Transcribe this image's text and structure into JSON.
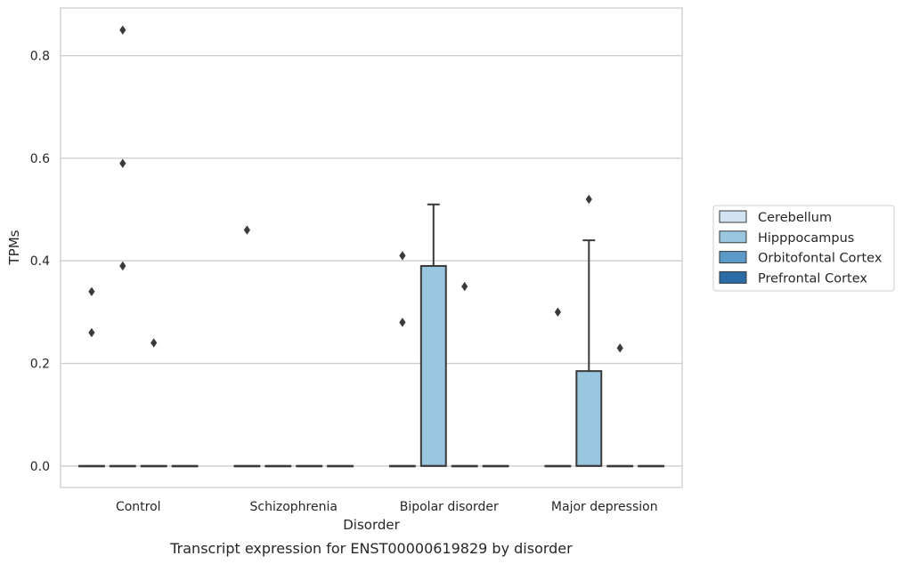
{
  "chart_data": {
    "type": "box",
    "title": "",
    "caption": "Transcript expression for ENST00000619829 by disorder",
    "xlabel": "Disorder",
    "ylabel": "TPMs",
    "ylim": [
      -0.042,
      0.893
    ],
    "yticks": [
      0.0,
      0.2,
      0.4,
      0.6,
      0.8
    ],
    "ytick_labels": [
      "0.0",
      "0.2",
      "0.4",
      "0.6",
      "0.8"
    ],
    "grid": "horizontal",
    "legend_position": "right",
    "categories": [
      "Control",
      "Schizophrenia",
      "Bipolar disorder",
      "Major depression"
    ],
    "series": [
      {
        "name": "Cerebellum",
        "color": "#d1e2f2"
      },
      {
        "name": "Hipppocampus",
        "color": "#9ac7e0"
      },
      {
        "name": "Orbitofontal Cortex",
        "color": "#5b9ac8"
      },
      {
        "name": "Prefrontal Cortex",
        "color": "#2b6ba6"
      }
    ],
    "boxes": [
      {
        "category": "Control",
        "series": "Cerebellum",
        "q1": 0,
        "median": 0,
        "q3": 0,
        "whisker_low": 0,
        "whisker_high": 0,
        "outliers": [
          0.26,
          0.34
        ]
      },
      {
        "category": "Control",
        "series": "Hipppocampus",
        "q1": 0,
        "median": 0,
        "q3": 0,
        "whisker_low": 0,
        "whisker_high": 0,
        "outliers": [
          0.39,
          0.59,
          0.85
        ]
      },
      {
        "category": "Control",
        "series": "Orbitofontal Cortex",
        "q1": 0,
        "median": 0,
        "q3": 0,
        "whisker_low": 0,
        "whisker_high": 0,
        "outliers": [
          0.24
        ]
      },
      {
        "category": "Control",
        "series": "Prefrontal Cortex",
        "q1": 0,
        "median": 0,
        "q3": 0,
        "whisker_low": 0,
        "whisker_high": 0,
        "outliers": []
      },
      {
        "category": "Schizophrenia",
        "series": "Cerebellum",
        "q1": 0,
        "median": 0,
        "q3": 0,
        "whisker_low": 0,
        "whisker_high": 0,
        "outliers": [
          0.46
        ]
      },
      {
        "category": "Schizophrenia",
        "series": "Hipppocampus",
        "q1": 0,
        "median": 0,
        "q3": 0,
        "whisker_low": 0,
        "whisker_high": 0,
        "outliers": []
      },
      {
        "category": "Schizophrenia",
        "series": "Orbitofontal Cortex",
        "q1": 0,
        "median": 0,
        "q3": 0,
        "whisker_low": 0,
        "whisker_high": 0,
        "outliers": []
      },
      {
        "category": "Schizophrenia",
        "series": "Prefrontal Cortex",
        "q1": 0,
        "median": 0,
        "q3": 0,
        "whisker_low": 0,
        "whisker_high": 0,
        "outliers": []
      },
      {
        "category": "Bipolar disorder",
        "series": "Cerebellum",
        "q1": 0,
        "median": 0,
        "q3": 0,
        "whisker_low": 0,
        "whisker_high": 0,
        "outliers": [
          0.28,
          0.41
        ]
      },
      {
        "category": "Bipolar disorder",
        "series": "Hipppocampus",
        "q1": 0,
        "median": 0,
        "q3": 0.39,
        "whisker_low": 0,
        "whisker_high": 0.51,
        "outliers": []
      },
      {
        "category": "Bipolar disorder",
        "series": "Orbitofontal Cortex",
        "q1": 0,
        "median": 0,
        "q3": 0,
        "whisker_low": 0,
        "whisker_high": 0,
        "outliers": [
          0.35
        ]
      },
      {
        "category": "Bipolar disorder",
        "series": "Prefrontal Cortex",
        "q1": 0,
        "median": 0,
        "q3": 0,
        "whisker_low": 0,
        "whisker_high": 0,
        "outliers": []
      },
      {
        "category": "Major depression",
        "series": "Cerebellum",
        "q1": 0,
        "median": 0,
        "q3": 0,
        "whisker_low": 0,
        "whisker_high": 0,
        "outliers": [
          0.3
        ]
      },
      {
        "category": "Major depression",
        "series": "Hipppocampus",
        "q1": 0,
        "median": 0,
        "q3": 0.185,
        "whisker_low": 0,
        "whisker_high": 0.44,
        "outliers": [
          0.52
        ]
      },
      {
        "category": "Major depression",
        "series": "Orbitofontal Cortex",
        "q1": 0,
        "median": 0,
        "q3": 0,
        "whisker_low": 0,
        "whisker_high": 0,
        "outliers": [
          0.23
        ]
      },
      {
        "category": "Major depression",
        "series": "Prefrontal Cortex",
        "q1": 0,
        "median": 0,
        "q3": 0,
        "whisker_low": 0,
        "whisker_high": 0,
        "outliers": []
      }
    ],
    "box_edge_color": "#3a3a3a",
    "grid_color": "#cccccc"
  }
}
